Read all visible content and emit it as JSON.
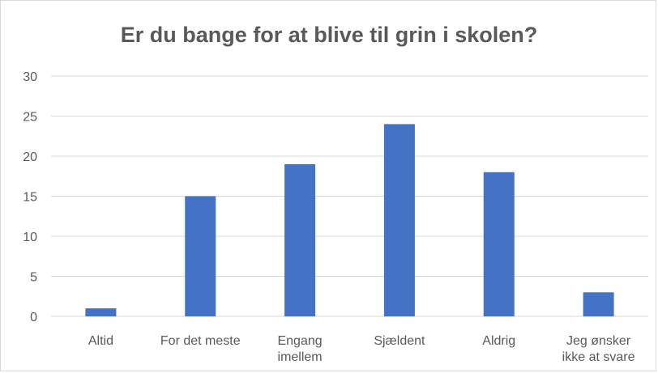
{
  "chart_data": {
    "type": "bar",
    "title": "Er du bange for at blive til grin i skolen?",
    "categories": [
      "Altid",
      "For det meste",
      "Engang imellem",
      "Sjældent",
      "Aldrig",
      "Jeg ønsker ikke at svare"
    ],
    "category_lines": [
      [
        "Altid"
      ],
      [
        "For det meste"
      ],
      [
        "Engang",
        "imellem"
      ],
      [
        "Sjældent"
      ],
      [
        "Aldrig"
      ],
      [
        "Jeg ønsker",
        "ikke at svare"
      ]
    ],
    "values": [
      1,
      15,
      19,
      24,
      18,
      3
    ],
    "ylim": [
      0,
      30
    ],
    "yticks": [
      0,
      5,
      10,
      15,
      20,
      25,
      30
    ],
    "grid": true,
    "xlabel": "",
    "ylabel": "",
    "bar_color": "#4472c4",
    "grid_color": "#d9d9d9"
  }
}
